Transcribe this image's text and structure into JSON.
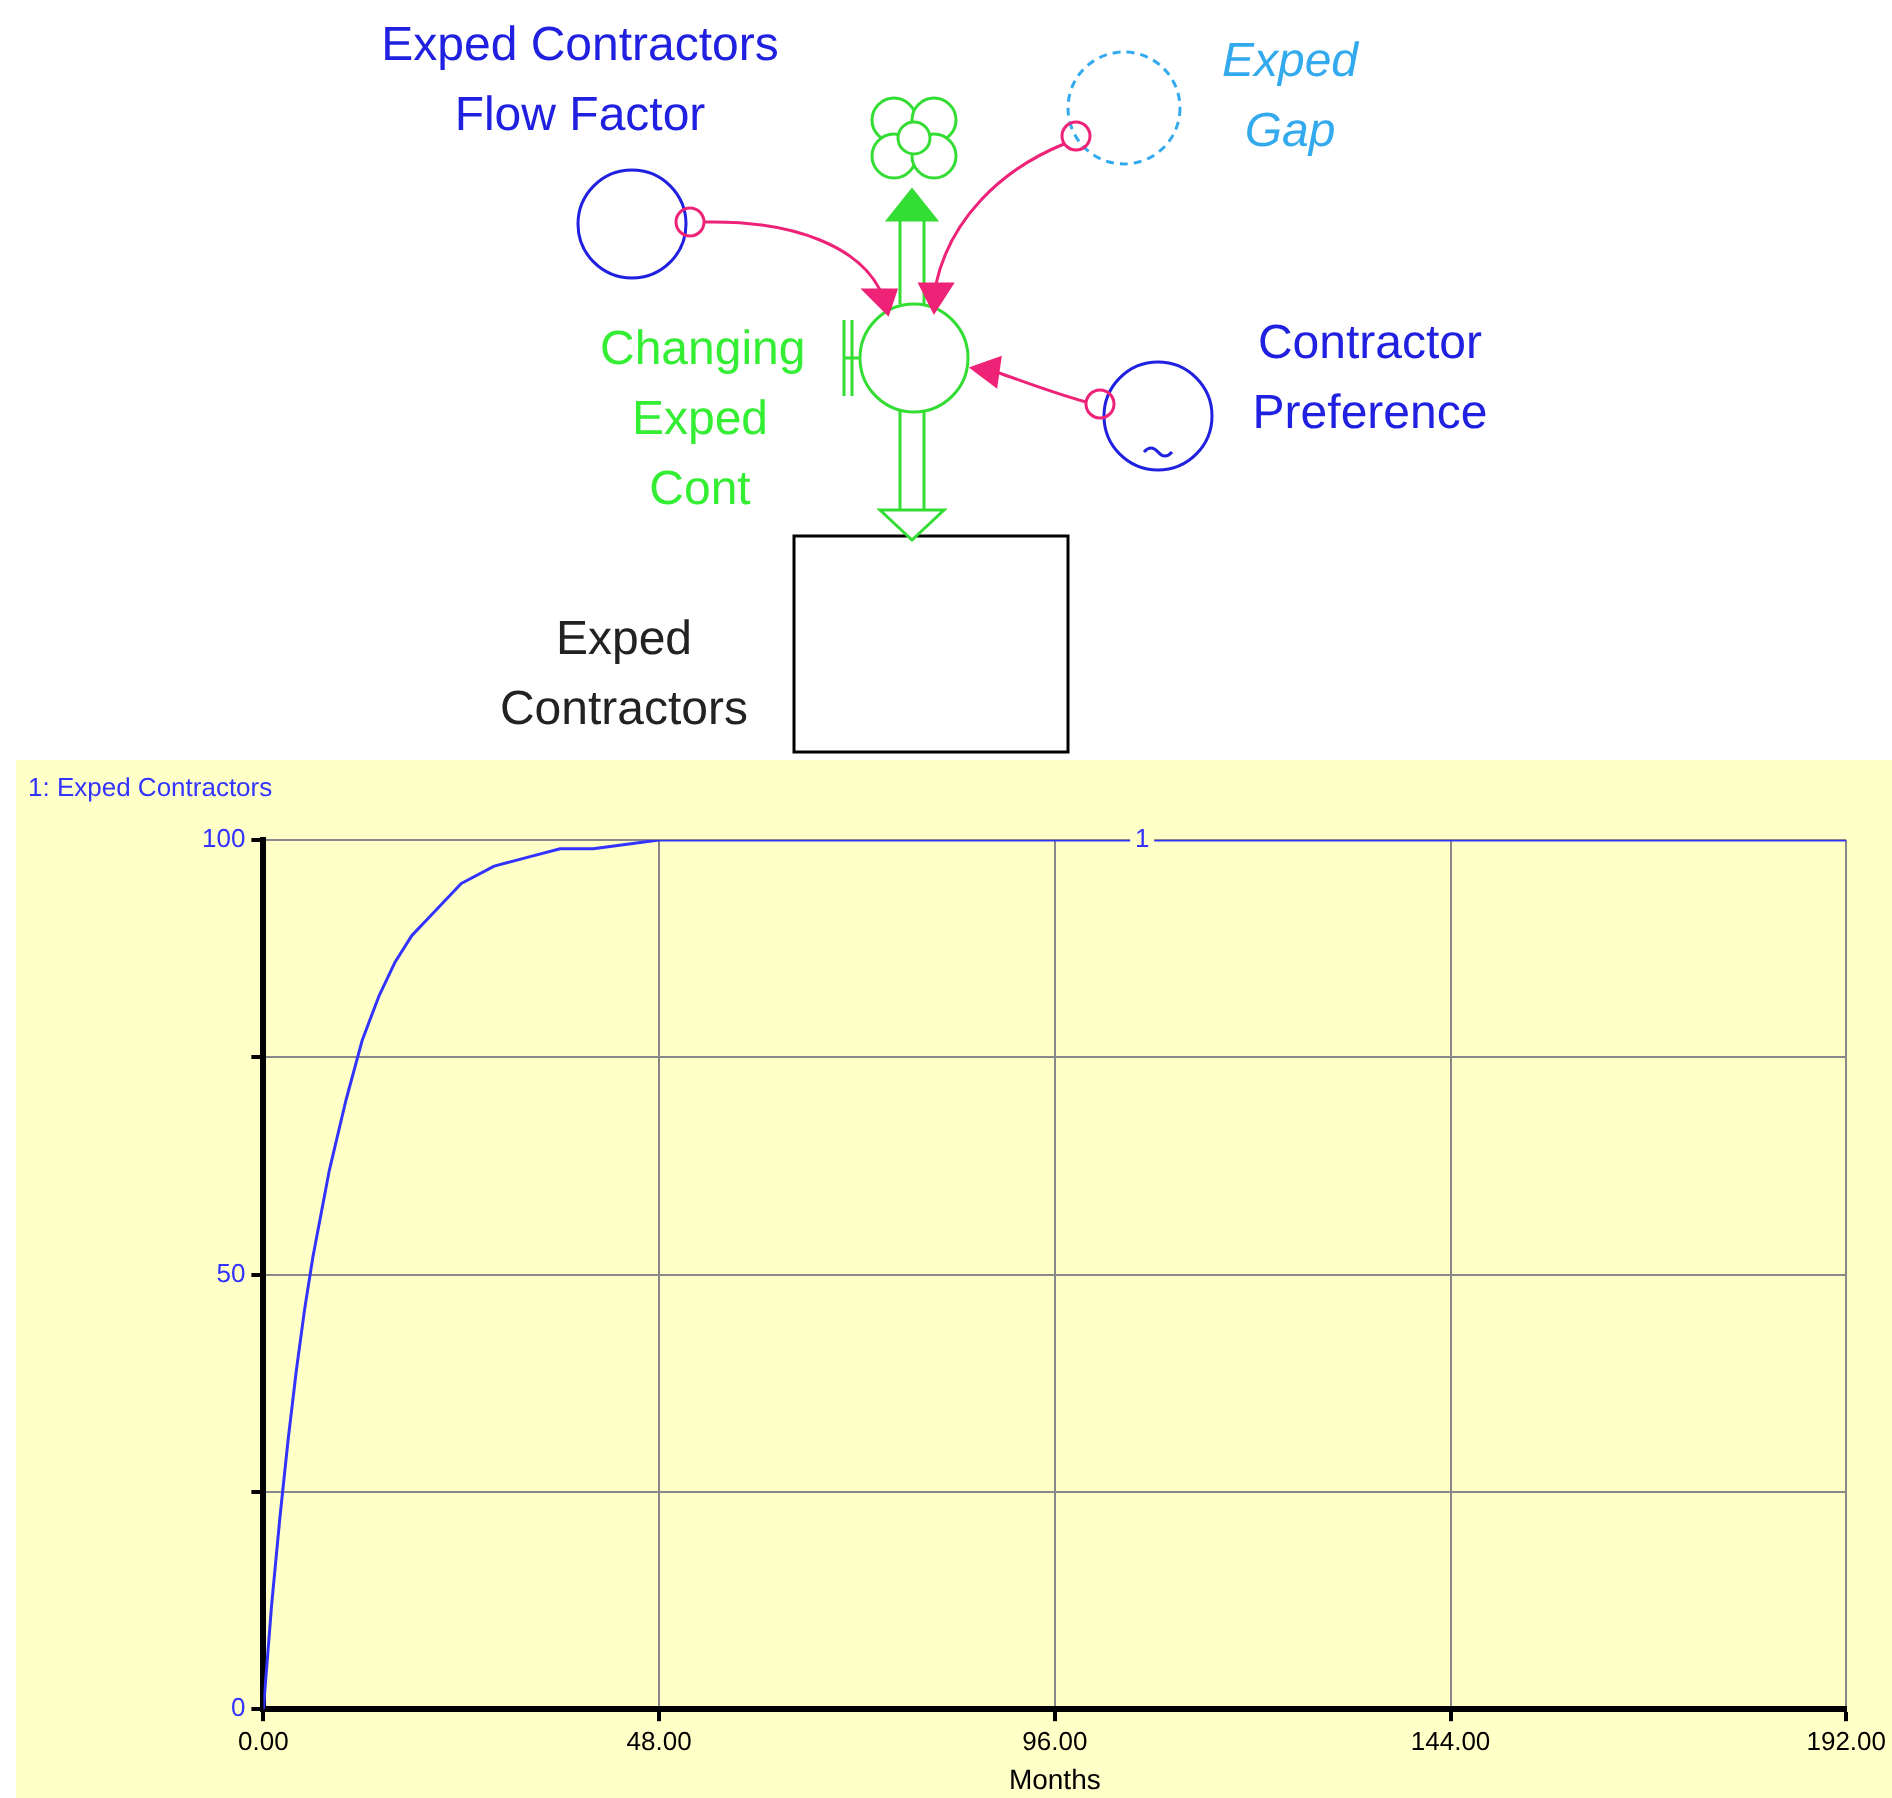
{
  "chart_data": {
    "type": "line",
    "xlabel": "Months",
    "legend": "top left",
    "grid": true,
    "xlim": [
      0,
      192
    ],
    "ylim": [
      0,
      100
    ],
    "xticks": [
      {
        "value": 0,
        "label": "0.00"
      },
      {
        "value": 48,
        "label": "48.00"
      },
      {
        "value": 96,
        "label": "96.00"
      },
      {
        "value": 144,
        "label": "144.00"
      },
      {
        "value": 192,
        "label": "192.00"
      }
    ],
    "yticks": [
      0,
      {
        "value": 25,
        "label": null
      },
      50,
      {
        "value": 75,
        "label": null
      },
      100
    ],
    "x": [
      0,
      1,
      2,
      3,
      4,
      5,
      6,
      8,
      10,
      12,
      14,
      16,
      18,
      20,
      24,
      28,
      32,
      36,
      40,
      48,
      56,
      64,
      192
    ],
    "series": [
      {
        "name": "1: Exped Contractors",
        "color": "#3333ff",
        "values": [
          0,
          12,
          22,
          31,
          39,
          46,
          52,
          62,
          70,
          77,
          82,
          86,
          89,
          91,
          95,
          97,
          98,
          99,
          99,
          100,
          100,
          100,
          100
        ]
      }
    ],
    "annotations": [
      "Exped Contractors Flow Factor",
      "Exped Gap",
      "Changing Exped Cont",
      "Contractor Preference",
      "Exped Contractors",
      {
        "text": "1",
        "x": 106.6,
        "y": 100
      }
    ]
  }
}
